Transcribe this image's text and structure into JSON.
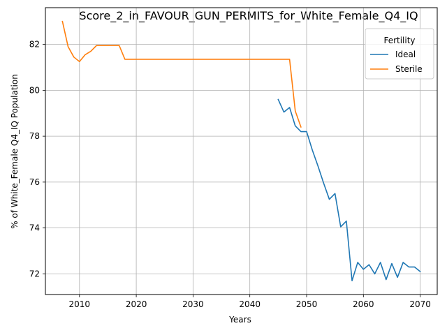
{
  "chart_data": {
    "type": "line",
    "title": "Score_2_in_FAVOUR_GUN_PERMITS_for_White_Female_Q4_IQ",
    "xlabel": "Years",
    "ylabel": "% of White_Female Q4_IQ Population",
    "xlim": [
      2004,
      2073
    ],
    "ylim": [
      71.1,
      83.6
    ],
    "xticks": [
      2010,
      2020,
      2030,
      2040,
      2050,
      2060,
      2070
    ],
    "yticks": [
      72,
      74,
      76,
      78,
      80,
      82
    ],
    "grid": true,
    "legend": {
      "title": "Fertility",
      "placement": "top-right"
    },
    "series": [
      {
        "name": "Ideal",
        "color": "#1f77b4",
        "x": [
          2045,
          2046,
          2047,
          2048,
          2049,
          2050,
          2051,
          2052,
          2053,
          2054,
          2055,
          2056,
          2057,
          2058,
          2059,
          2060,
          2061,
          2062,
          2063,
          2064,
          2065,
          2066,
          2067,
          2068,
          2069,
          2070
        ],
        "y": [
          79.6,
          79.05,
          79.25,
          78.45,
          78.2,
          78.2,
          77.4,
          76.7,
          75.95,
          75.25,
          75.5,
          74.05,
          74.3,
          71.7,
          72.5,
          72.2,
          72.4,
          72.0,
          72.5,
          71.75,
          72.45,
          71.85,
          72.5,
          72.3,
          72.3,
          72.1
        ]
      },
      {
        "name": "Sterile",
        "color": "#ff7f0e",
        "x": [
          2007,
          2008,
          2009,
          2010,
          2011,
          2012,
          2013,
          2014,
          2015,
          2016,
          2017,
          2018,
          2019,
          2020,
          2025,
          2030,
          2035,
          2040,
          2045,
          2046,
          2047,
          2048,
          2049
        ],
        "y": [
          83.0,
          81.9,
          81.45,
          81.25,
          81.55,
          81.7,
          81.95,
          81.95,
          81.95,
          81.95,
          81.95,
          81.35,
          81.35,
          81.35,
          81.35,
          81.35,
          81.35,
          81.35,
          81.35,
          81.35,
          81.35,
          79.1,
          78.4
        ]
      }
    ]
  }
}
